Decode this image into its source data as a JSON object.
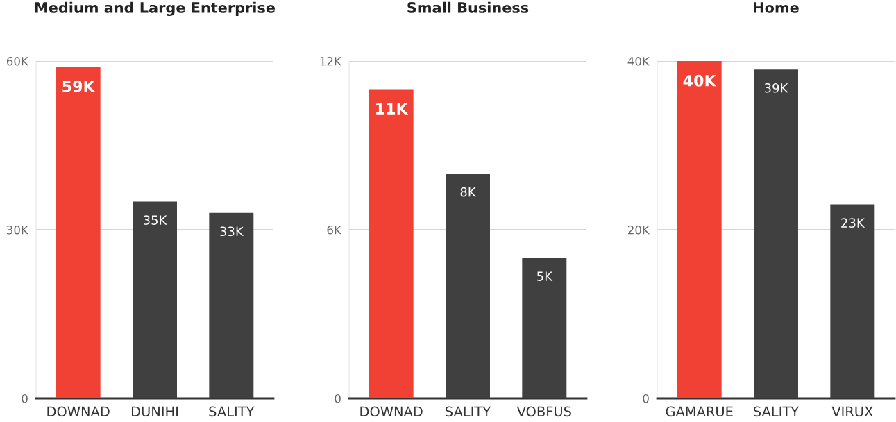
{
  "chart_data": [
    {
      "type": "bar",
      "title": "Medium and Large Enterprise",
      "categories": [
        "DOWNAD",
        "DUNIHI",
        "SALITY"
      ],
      "values": [
        59000,
        35000,
        33000
      ],
      "colors": [
        "#f04134",
        "#404040",
        "#404040"
      ],
      "value_labels": [
        "59K",
        "35K",
        "33K"
      ],
      "ylim": [
        0,
        60000
      ],
      "yticks": [
        {
          "value": 0,
          "label": "0"
        },
        {
          "value": 30000,
          "label": "30K"
        },
        {
          "value": 60000,
          "label": "60K"
        }
      ],
      "grid": "y"
    },
    {
      "type": "bar",
      "title": "Small Business",
      "categories": [
        "DOWNAD",
        "SALITY",
        "VOBFUS"
      ],
      "values": [
        11000,
        8000,
        5000
      ],
      "colors": [
        "#f04134",
        "#404040",
        "#404040"
      ],
      "value_labels": [
        "11K",
        "8K",
        "5K"
      ],
      "ylim": [
        0,
        12000
      ],
      "yticks": [
        {
          "value": 0,
          "label": "0"
        },
        {
          "value": 6000,
          "label": "6K"
        },
        {
          "value": 12000,
          "label": "12K"
        }
      ],
      "grid": "y"
    },
    {
      "type": "bar",
      "title": "Home",
      "categories": [
        "GAMARUE",
        "SALITY",
        "VIRUX"
      ],
      "values": [
        40000,
        39000,
        23000
      ],
      "colors": [
        "#f04134",
        "#404040",
        "#404040"
      ],
      "value_labels": [
        "40K",
        "39K",
        "23K"
      ],
      "ylim": [
        0,
        40000
      ],
      "yticks": [
        {
          "value": 0,
          "label": "0"
        },
        {
          "value": 20000,
          "label": "20K"
        },
        {
          "value": 40000,
          "label": "40K"
        }
      ],
      "grid": "y"
    }
  ]
}
